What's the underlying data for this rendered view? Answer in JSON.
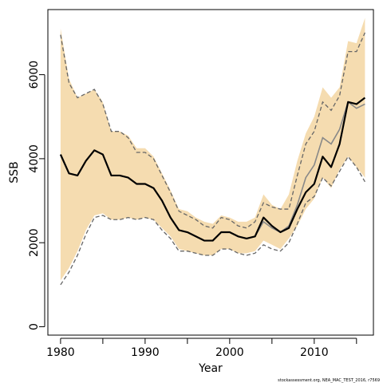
{
  "chart_data": {
    "type": "line",
    "xlabel": "Year",
    "ylabel": "SSB",
    "xlim": [
      1978.5,
      2017.0
    ],
    "ylim": [
      -200,
      7550
    ],
    "xticks": [
      1980,
      1985,
      1990,
      1995,
      2000,
      2005,
      2010,
      2015
    ],
    "xtick_labels": [
      "1980",
      "",
      "1990",
      "",
      "2000",
      "",
      "2010",
      ""
    ],
    "yticks": [
      0,
      2000,
      4000,
      6000
    ],
    "ytick_labels": [
      "0",
      "2000",
      "4000",
      "6000"
    ],
    "grid": false,
    "x": [
      1980,
      1981,
      1982,
      1983,
      1984,
      1985,
      1986,
      1987,
      1988,
      1989,
      1990,
      1991,
      1992,
      1993,
      1994,
      1995,
      1996,
      1997,
      1998,
      1999,
      2000,
      2001,
      2002,
      2003,
      2004,
      2005,
      2006,
      2007,
      2008,
      2009,
      2010,
      2011,
      2012,
      2013,
      2014,
      2015,
      2016
    ],
    "series": [
      {
        "role": "confidence-band",
        "lower": [
          1100,
          1400,
          1800,
          2300,
          2650,
          2700,
          2550,
          2550,
          2600,
          2550,
          2600,
          2550,
          2350,
          2150,
          1850,
          1800,
          1750,
          1700,
          1700,
          1850,
          1850,
          1750,
          1750,
          1800,
          2050,
          1950,
          1850,
          2100,
          2400,
          2800,
          3050,
          3550,
          3300,
          3750,
          4050,
          3800,
          3550
        ],
        "upper": [
          7100,
          5900,
          5450,
          5550,
          5650,
          5350,
          4650,
          4650,
          4550,
          4250,
          4250,
          4050,
          3650,
          3250,
          2800,
          2750,
          2600,
          2500,
          2450,
          2650,
          2600,
          2500,
          2500,
          2600,
          3150,
          2900,
          2800,
          3150,
          3950,
          4600,
          5000,
          5700,
          5450,
          5700,
          6800,
          6750,
          7350
        ]
      },
      {
        "role": "estimate",
        "values": [
          4100,
          3650,
          3600,
          3950,
          4200,
          4100,
          3600,
          3600,
          3550,
          3400,
          3400,
          3300,
          3000,
          2600,
          2300,
          2250,
          2150,
          2050,
          2050,
          2250,
          2250,
          2150,
          2100,
          2150,
          2600,
          2400,
          2250,
          2350,
          2800,
          3200,
          3400,
          4050,
          3800,
          4350,
          5350,
          5300,
          5450
        ]
      },
      {
        "role": "alternate-estimate",
        "values": [
          4100,
          3650,
          3600,
          3950,
          4200,
          4100,
          3600,
          3600,
          3550,
          3400,
          3400,
          3300,
          3000,
          2600,
          2300,
          2250,
          2150,
          2050,
          2050,
          2250,
          2250,
          2150,
          2100,
          2150,
          2500,
          2350,
          2250,
          2400,
          2900,
          3550,
          3850,
          4500,
          4350,
          4700,
          5350,
          5200,
          5300
        ]
      },
      {
        "role": "alternate-interval",
        "lower": [
          1000,
          1300,
          1700,
          2200,
          2600,
          2650,
          2550,
          2550,
          2600,
          2550,
          2600,
          2550,
          2300,
          2100,
          1800,
          1800,
          1750,
          1700,
          1700,
          1850,
          1850,
          1750,
          1700,
          1750,
          1950,
          1850,
          1800,
          2000,
          2450,
          2950,
          3100,
          3550,
          3350,
          3700,
          4050,
          3800,
          3450
        ],
        "upper": [
          6950,
          5800,
          5450,
          5550,
          5650,
          5300,
          4650,
          4650,
          4500,
          4150,
          4150,
          4000,
          3600,
          3200,
          2750,
          2650,
          2550,
          2400,
          2350,
          2600,
          2550,
          2400,
          2350,
          2500,
          2950,
          2850,
          2800,
          2800,
          3600,
          4350,
          4650,
          5350,
          5150,
          5500,
          6550,
          6550,
          7000
        ]
      }
    ],
    "colors": {
      "band": "#f5dcb0",
      "estimate": "#000000",
      "alternate": "#888888",
      "interval": "#666666",
      "axis": "#000000"
    }
  },
  "footnote": "stockassessment.org, NEA_MAC_TEST_2016, r7569"
}
